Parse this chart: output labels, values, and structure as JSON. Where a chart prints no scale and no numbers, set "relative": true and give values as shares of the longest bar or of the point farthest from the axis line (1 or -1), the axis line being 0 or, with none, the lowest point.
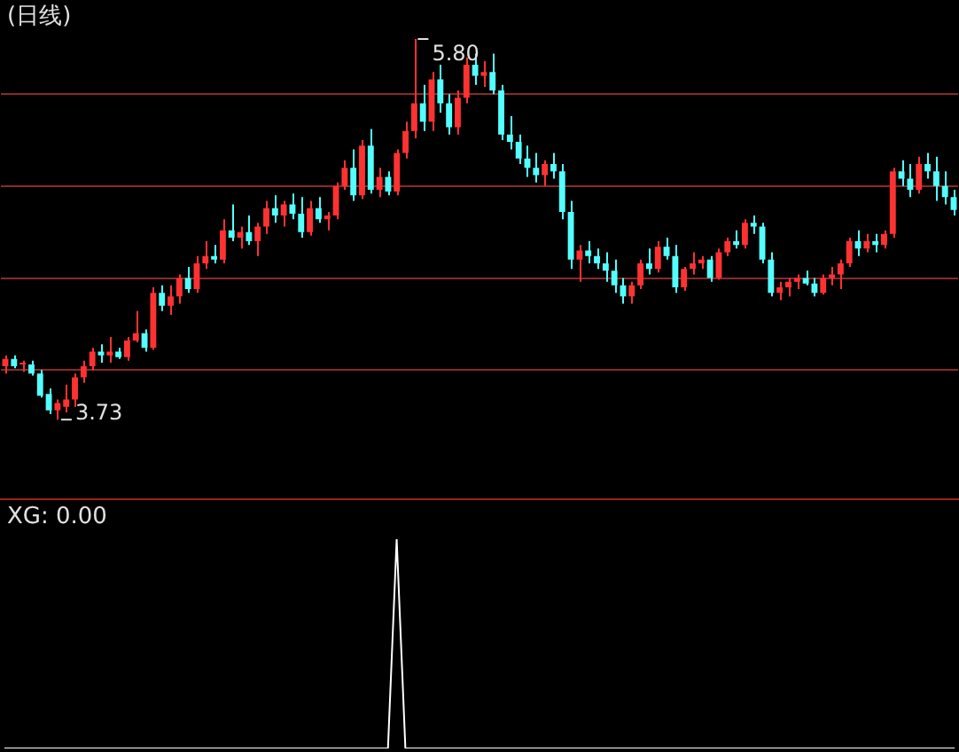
{
  "chart_data": [
    {
      "type": "candlestick",
      "title": "(日线)",
      "categories": [
        null,
        null,
        null,
        null,
        null,
        null,
        null,
        null,
        null,
        null,
        null,
        null,
        null,
        null,
        null,
        null,
        null,
        null,
        null,
        null,
        null,
        null,
        null,
        null,
        null,
        null,
        null,
        null,
        null,
        null,
        null,
        null,
        null,
        null,
        null,
        null,
        null,
        null,
        null,
        null,
        null,
        null,
        null,
        null,
        null,
        null,
        null,
        null,
        null,
        null,
        null,
        null,
        null,
        null,
        null,
        null,
        null,
        null,
        null,
        null,
        null,
        null,
        null,
        null,
        null,
        null,
        null,
        null,
        null,
        null,
        null,
        null,
        null,
        null,
        null,
        null,
        null,
        null,
        null,
        null,
        null,
        null,
        null,
        null,
        null,
        null,
        null,
        null,
        null,
        null,
        null,
        null,
        null,
        null,
        null,
        null,
        null,
        null,
        null,
        null,
        null,
        null,
        null,
        null,
        null,
        null,
        null,
        null,
        null,
        null
      ],
      "ohlc": [
        [
          4.02,
          4.08,
          3.98,
          4.06
        ],
        [
          4.06,
          4.08,
          4.01,
          4.02
        ],
        [
          4.03,
          4.05,
          3.99,
          4.04
        ],
        [
          4.03,
          4.05,
          3.97,
          3.98
        ],
        [
          3.98,
          4.0,
          3.85,
          3.86
        ],
        [
          3.87,
          3.9,
          3.76,
          3.78
        ],
        [
          3.78,
          3.84,
          3.73,
          3.82
        ],
        [
          3.8,
          3.92,
          3.77,
          3.84
        ],
        [
          3.84,
          3.98,
          3.8,
          3.96
        ],
        [
          3.96,
          4.05,
          3.93,
          4.02
        ],
        [
          4.02,
          4.12,
          4.0,
          4.1
        ],
        [
          4.1,
          4.14,
          4.04,
          4.08
        ],
        [
          4.08,
          4.18,
          4.04,
          4.1
        ],
        [
          4.1,
          4.12,
          4.06,
          4.07
        ],
        [
          4.07,
          4.18,
          4.05,
          4.16
        ],
        [
          4.16,
          4.32,
          4.15,
          4.2
        ],
        [
          4.2,
          4.22,
          4.1,
          4.12
        ],
        [
          4.12,
          4.45,
          4.11,
          4.42
        ],
        [
          4.42,
          4.46,
          4.32,
          4.35
        ],
        [
          4.35,
          4.46,
          4.3,
          4.4
        ],
        [
          4.4,
          4.52,
          4.36,
          4.5
        ],
        [
          4.5,
          4.56,
          4.42,
          4.44
        ],
        [
          4.44,
          4.62,
          4.42,
          4.58
        ],
        [
          4.58,
          4.7,
          4.55,
          4.62
        ],
        [
          4.62,
          4.68,
          4.58,
          4.6
        ],
        [
          4.6,
          4.82,
          4.58,
          4.76
        ],
        [
          4.76,
          4.9,
          4.7,
          4.72
        ],
        [
          4.72,
          4.78,
          4.66,
          4.75
        ],
        [
          4.75,
          4.84,
          4.68,
          4.7
        ],
        [
          4.7,
          4.8,
          4.62,
          4.78
        ],
        [
          4.78,
          4.92,
          4.74,
          4.88
        ],
        [
          4.88,
          4.95,
          4.8,
          4.84
        ],
        [
          4.84,
          4.92,
          4.78,
          4.9
        ],
        [
          4.9,
          4.96,
          4.82,
          4.85
        ],
        [
          4.85,
          4.94,
          4.72,
          4.75
        ],
        [
          4.75,
          4.92,
          4.73,
          4.88
        ],
        [
          4.88,
          4.94,
          4.8,
          4.82
        ],
        [
          4.82,
          4.86,
          4.76,
          4.84
        ],
        [
          4.84,
          5.02,
          4.82,
          5.0
        ],
        [
          5.0,
          5.14,
          4.98,
          5.1
        ],
        [
          5.1,
          5.2,
          4.92,
          4.95
        ],
        [
          4.95,
          5.25,
          4.93,
          5.22
        ],
        [
          5.22,
          5.31,
          4.96,
          4.98
        ],
        [
          4.98,
          5.1,
          4.94,
          5.05
        ],
        [
          5.05,
          5.08,
          4.95,
          4.97
        ],
        [
          4.97,
          5.2,
          4.95,
          5.18
        ],
        [
          5.18,
          5.35,
          5.15,
          5.3
        ],
        [
          5.3,
          5.8,
          5.26,
          5.45
        ],
        [
          5.45,
          5.55,
          5.3,
          5.35
        ],
        [
          5.35,
          5.62,
          5.3,
          5.58
        ],
        [
          5.58,
          5.66,
          5.4,
          5.45
        ],
        [
          5.45,
          5.5,
          5.28,
          5.32
        ],
        [
          5.32,
          5.52,
          5.28,
          5.48
        ],
        [
          5.48,
          5.7,
          5.45,
          5.66
        ],
        [
          5.66,
          5.72,
          5.55,
          5.6
        ],
        [
          5.6,
          5.68,
          5.54,
          5.62
        ],
        [
          5.62,
          5.72,
          5.5,
          5.52
        ],
        [
          5.52,
          5.55,
          5.25,
          5.28
        ],
        [
          5.28,
          5.38,
          5.2,
          5.24
        ],
        [
          5.24,
          5.28,
          5.12,
          5.15
        ],
        [
          5.15,
          5.22,
          5.05,
          5.1
        ],
        [
          5.1,
          5.18,
          5.02,
          5.06
        ],
        [
          5.06,
          5.14,
          5.0,
          5.12
        ],
        [
          5.12,
          5.18,
          5.04,
          5.08
        ],
        [
          5.08,
          5.12,
          4.82,
          4.86
        ],
        [
          4.86,
          4.92,
          4.55,
          4.6
        ],
        [
          4.6,
          4.68,
          4.48,
          4.65
        ],
        [
          4.65,
          4.7,
          4.58,
          4.62
        ],
        [
          4.62,
          4.66,
          4.55,
          4.58
        ],
        [
          4.58,
          4.64,
          4.48,
          4.54
        ],
        [
          4.54,
          4.6,
          4.42,
          4.46
        ],
        [
          4.46,
          4.5,
          4.36,
          4.4
        ],
        [
          4.4,
          4.48,
          4.36,
          4.46
        ],
        [
          4.46,
          4.6,
          4.44,
          4.58
        ],
        [
          4.58,
          4.66,
          4.52,
          4.55
        ],
        [
          4.55,
          4.7,
          4.53,
          4.67
        ],
        [
          4.67,
          4.72,
          4.6,
          4.62
        ],
        [
          4.62,
          4.68,
          4.42,
          4.45
        ],
        [
          4.45,
          4.56,
          4.43,
          4.55
        ],
        [
          4.55,
          4.64,
          4.52,
          4.58
        ],
        [
          4.58,
          4.62,
          4.55,
          4.6
        ],
        [
          4.6,
          4.62,
          4.48,
          4.5
        ],
        [
          4.5,
          4.66,
          4.49,
          4.64
        ],
        [
          4.64,
          4.72,
          4.62,
          4.7
        ],
        [
          4.7,
          4.76,
          4.66,
          4.68
        ],
        [
          4.68,
          4.82,
          4.66,
          4.8
        ],
        [
          4.8,
          4.84,
          4.74,
          4.78
        ],
        [
          4.78,
          4.8,
          4.58,
          4.6
        ],
        [
          4.6,
          4.64,
          4.4,
          4.42
        ],
        [
          4.42,
          4.48,
          4.38,
          4.45
        ],
        [
          4.45,
          4.5,
          4.4,
          4.48
        ],
        [
          4.48,
          4.52,
          4.44,
          4.5
        ],
        [
          4.5,
          4.54,
          4.46,
          4.47
        ],
        [
          4.47,
          4.5,
          4.4,
          4.42
        ],
        [
          4.42,
          4.52,
          4.41,
          4.5
        ],
        [
          4.5,
          4.56,
          4.46,
          4.52
        ],
        [
          4.52,
          4.6,
          4.44,
          4.58
        ],
        [
          4.58,
          4.72,
          4.56,
          4.7
        ],
        [
          4.7,
          4.76,
          4.62,
          4.66
        ],
        [
          4.66,
          4.74,
          4.64,
          4.7
        ],
        [
          4.7,
          4.74,
          4.64,
          4.68
        ],
        [
          4.68,
          4.76,
          4.66,
          4.74
        ],
        [
          4.74,
          5.1,
          4.72,
          5.08
        ],
        [
          5.08,
          5.14,
          5.0,
          5.04
        ],
        [
          5.04,
          5.12,
          4.94,
          4.98
        ],
        [
          4.98,
          5.16,
          4.96,
          5.12
        ],
        [
          5.12,
          5.18,
          5.04,
          5.08
        ],
        [
          5.08,
          5.16,
          4.92,
          5.0
        ],
        [
          5.0,
          5.08,
          4.9,
          4.94
        ],
        [
          4.94,
          4.98,
          4.84,
          4.87
        ]
      ],
      "yticks": [
        {
          "value": 4.0,
          "label": null
        },
        {
          "value": 4.5,
          "label": null
        },
        {
          "value": 5.0,
          "label": null
        },
        {
          "value": 5.5,
          "label": null
        }
      ],
      "grid": "y",
      "annotations": [
        "5.80",
        "3.73"
      ]
    },
    {
      "type": "line",
      "title": "XG: 0.00",
      "relative": true,
      "color": "#ffffff",
      "categories": [
        null,
        null,
        null,
        null,
        null,
        null,
        null,
        null,
        null,
        null,
        null,
        null,
        null,
        null,
        null,
        null,
        null,
        null,
        null,
        null,
        null,
        null,
        null,
        null,
        null,
        null,
        null,
        null,
        null,
        null,
        null,
        null,
        null,
        null,
        null,
        null,
        null,
        null,
        null,
        null,
        null,
        null,
        null,
        null,
        null,
        null,
        null,
        null,
        null,
        null,
        null,
        null,
        null,
        null,
        null,
        null,
        null,
        null,
        null,
        null,
        null,
        null,
        null,
        null,
        null,
        null,
        null,
        null,
        null,
        null,
        null,
        null,
        null,
        null,
        null,
        null,
        null,
        null,
        null,
        null,
        null,
        null,
        null,
        null,
        null,
        null,
        null,
        null,
        null,
        null,
        null,
        null,
        null,
        null,
        null,
        null,
        null,
        null,
        null,
        null,
        null,
        null,
        null,
        null,
        null,
        null,
        null,
        null,
        null,
        null
      ],
      "values": [
        0,
        0,
        0,
        0,
        0,
        0,
        0,
        0,
        0,
        0,
        0,
        0,
        0,
        0,
        0,
        0,
        0,
        0,
        0,
        0,
        0,
        0,
        0,
        0,
        0,
        0,
        0,
        0,
        0,
        0,
        0,
        0,
        0,
        0,
        0,
        0,
        0,
        0,
        0,
        0,
        0,
        0,
        0,
        0,
        0,
        1,
        0,
        0,
        0,
        0,
        0,
        0,
        0,
        0,
        0,
        0,
        0,
        0,
        0,
        0,
        0,
        0,
        0,
        0,
        0,
        0,
        0,
        0,
        0,
        0,
        0,
        0,
        0,
        0,
        0,
        0,
        0,
        0,
        0,
        0,
        0,
        0,
        0,
        0,
        0,
        0,
        0,
        0,
        0,
        0,
        0,
        0,
        0,
        0,
        0,
        0,
        0,
        0,
        0,
        0,
        0,
        0,
        0,
        0,
        0,
        0,
        0,
        0,
        0,
        0
      ]
    }
  ]
}
